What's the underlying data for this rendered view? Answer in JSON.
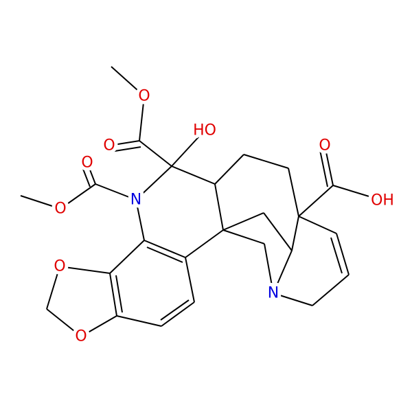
{
  "atoms": [
    {
      "label": "O"
    },
    {
      "label": "O"
    },
    {
      "label": "HO"
    },
    {
      "label": "N"
    },
    {
      "label": "O"
    },
    {
      "label": "O"
    },
    {
      "label": "O"
    },
    {
      "label": "O"
    },
    {
      "label": "O"
    },
    {
      "label": "OH"
    },
    {
      "label": "N"
    }
  ]
}
